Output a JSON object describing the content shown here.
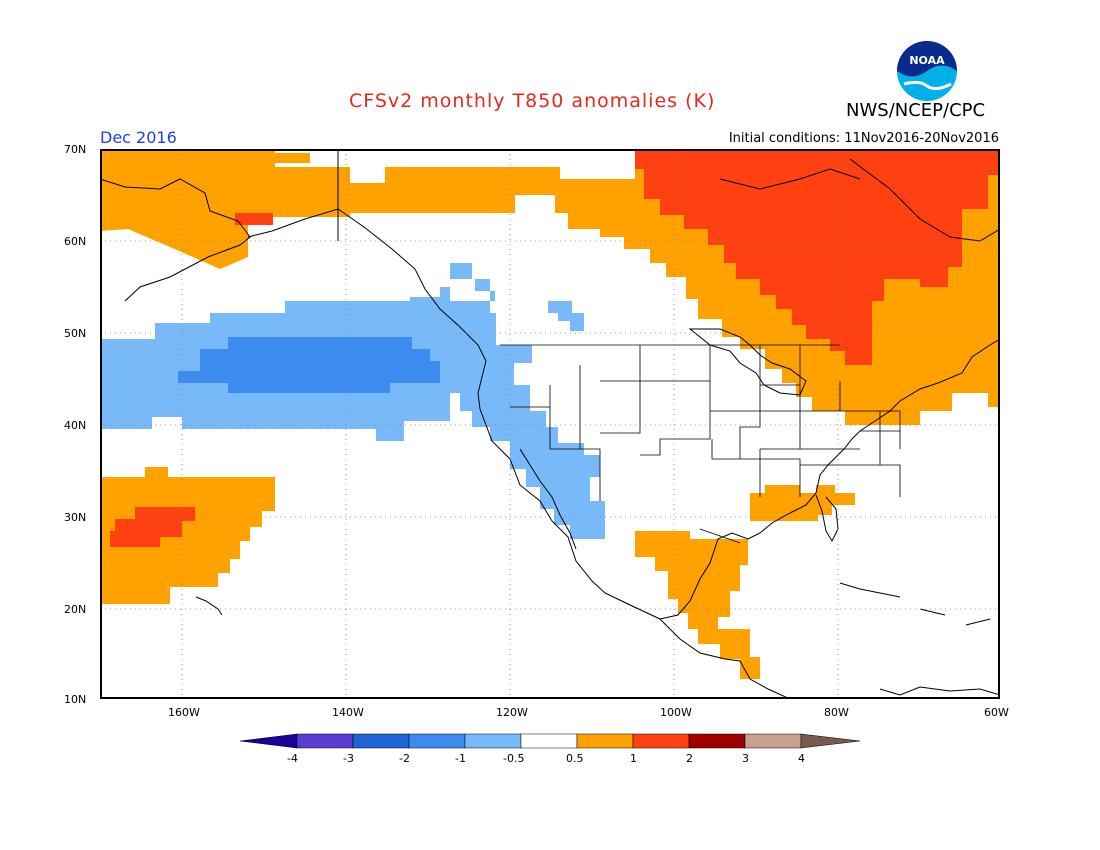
{
  "header": {
    "title": "CFSv2 monthly T850 anomalies (K)",
    "agency": "NWS/NCEP/CPC",
    "logo_text": "NOAA",
    "valid_month": "Dec 2016",
    "initial_conditions": "Initial conditions: 11Nov2016-20Nov2016"
  },
  "map": {
    "type": "heatmap",
    "lon_range": [
      -172,
      -60
    ],
    "lat_range": [
      10,
      70
    ],
    "grid": "dotted",
    "lat_labels": [
      "70N",
      "60N",
      "50N",
      "40N",
      "30N",
      "20N",
      "10N"
    ],
    "lat_values": [
      70,
      60,
      50,
      40,
      30,
      20,
      10
    ],
    "lon_labels": [
      "160W",
      "140W",
      "120W",
      "100W",
      "80W",
      "60W"
    ],
    "lon_values": [
      -160,
      -140,
      -120,
      -100,
      -80,
      -60
    ],
    "anomaly_regions": [
      {
        "region": "Alaska / Bering Sea",
        "range": "0.5 to 1",
        "color": "#ffa200"
      },
      {
        "region": "Southwest Alaska spot",
        "range": "1 to 2",
        "color": "#ff4010"
      },
      {
        "region": "Northern Canada",
        "range": "0.5 to 1",
        "color": "#ffa200"
      },
      {
        "region": "Central-eastern Canada",
        "range": "1 to 2",
        "color": "#ff4010"
      },
      {
        "region": "Great Lakes / Northeast",
        "range": "0.5 to 1",
        "color": "#ffa200"
      },
      {
        "region": "Northeast Pacific band",
        "range": "-1 to -0.5",
        "color": "#78b9fa"
      },
      {
        "region": "Northeast Pacific core",
        "range": "-2 to -1",
        "color": "#3c8cf0"
      },
      {
        "region": "US West Coast / Baja",
        "range": "-1 to -0.5",
        "color": "#78b9fa"
      },
      {
        "region": "Subtropical Pacific near Hawaii",
        "range": "0.5 to 1",
        "color": "#ffa200"
      },
      {
        "region": "Subtropical Pacific core",
        "range": "1 to 2",
        "color": "#ff4010"
      },
      {
        "region": "Mexico",
        "range": "0.5 to 1",
        "color": "#ffa200"
      },
      {
        "region": "US Southeast",
        "range": "0.5 to 1",
        "color": "#ffa200"
      }
    ]
  },
  "colorbar": {
    "labels": [
      "-4",
      "-3",
      "-2",
      "-1",
      "-0.5",
      "0.5",
      "1",
      "2",
      "3",
      "4"
    ],
    "colors": [
      "#1c009c",
      "#5a3cd2",
      "#1e64d2",
      "#3c8cf0",
      "#78b9fa",
      "#ffffff",
      "#ffa200",
      "#ff4010",
      "#a00000",
      "#c8a090",
      "#7a5a4a"
    ]
  }
}
